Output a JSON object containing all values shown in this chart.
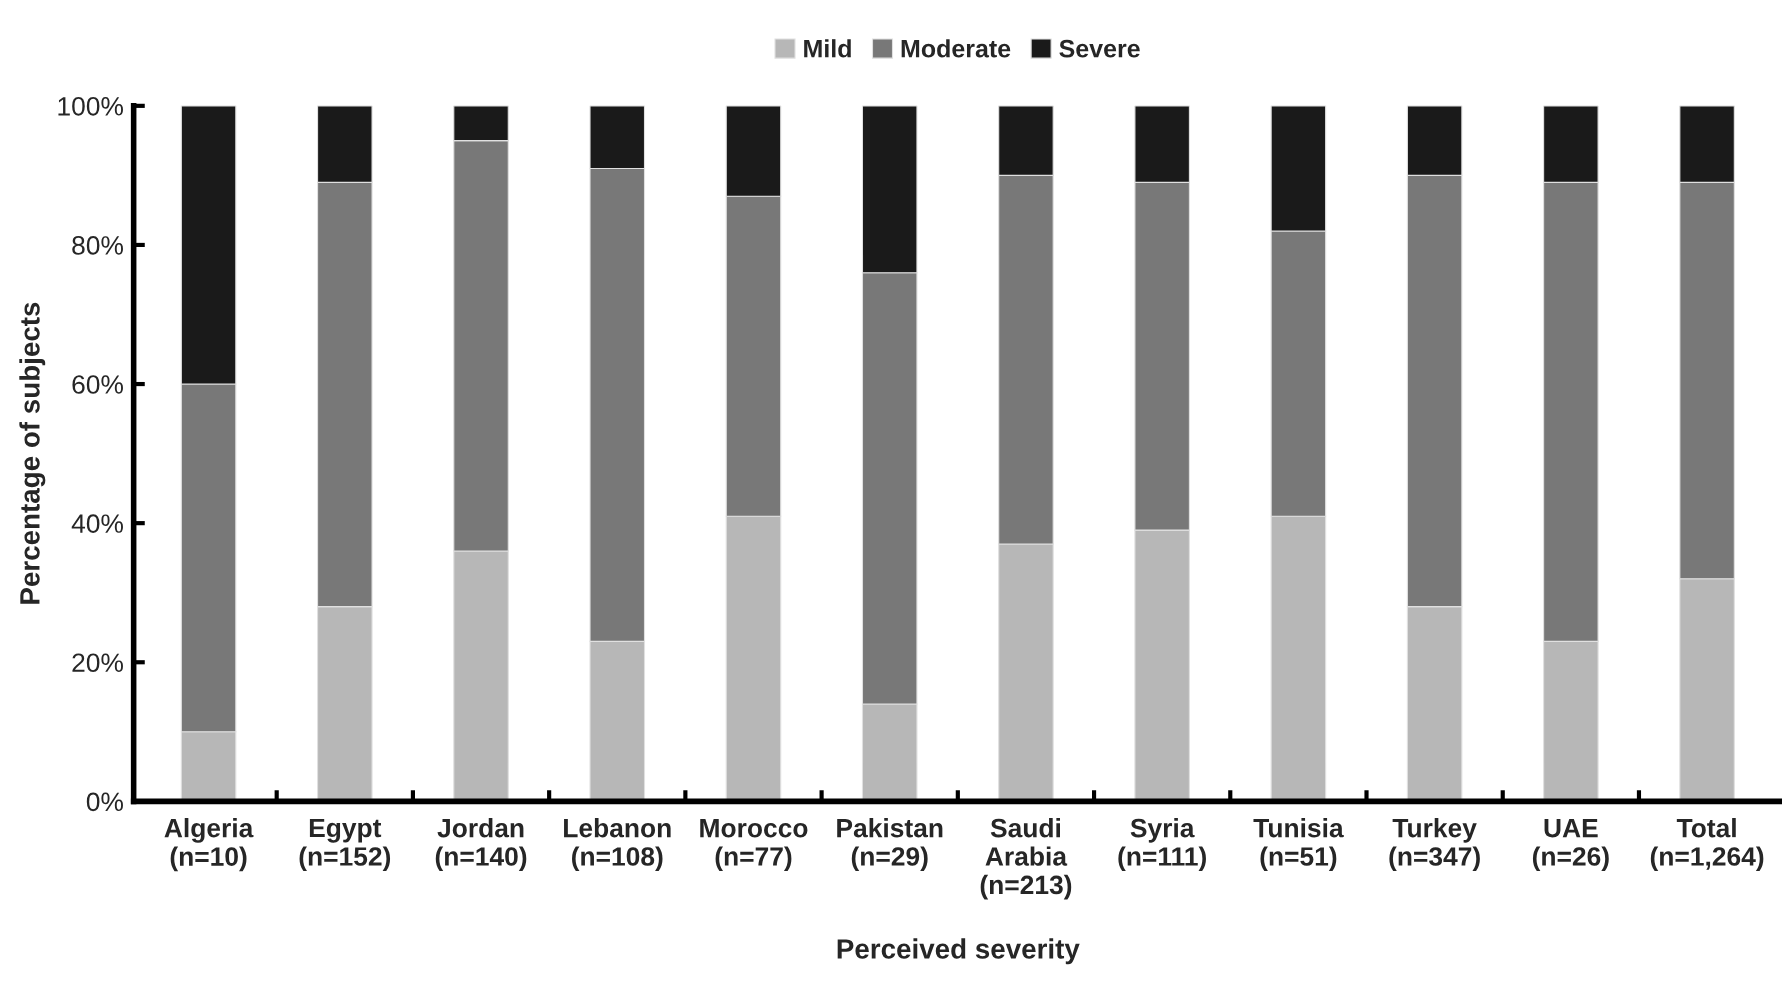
{
  "chart_data": {
    "type": "bar",
    "stacked": true,
    "xlabel": "Perceived severity",
    "ylabel": "Percentage of subjects",
    "categories": [
      "Algeria\n(n=10)",
      "Egypt\n(n=152)",
      "Jordan\n(n=140)",
      "Lebanon\n(n=108)",
      "Morocco\n(n=77)",
      "Pakistan\n(n=29)",
      "Saudi\nArabia\n(n=213)",
      "Syria\n(n=111)",
      "Tunisia\n(n=51)",
      "Turkey\n(n=347)",
      "UAE\n(n=26)",
      "Total\n(n=1,264)"
    ],
    "series": [
      {
        "name": "Mild",
        "color": "#b7b7b7",
        "values": [
          10,
          28,
          36,
          23,
          41,
          14,
          37,
          39,
          41,
          28,
          23,
          32
        ]
      },
      {
        "name": "Moderate",
        "color": "#787878",
        "values": [
          50,
          61,
          59,
          68,
          46,
          62,
          53,
          50,
          41,
          62,
          66,
          57
        ]
      },
      {
        "name": "Severe",
        "color": "#1a1a1a",
        "values": [
          40,
          11,
          5,
          9,
          13,
          24,
          10,
          11,
          18,
          10,
          11,
          11
        ]
      }
    ],
    "ylim": [
      0,
      100
    ],
    "yticks": [
      {
        "value": 0,
        "label": "0%"
      },
      {
        "value": 20,
        "label": "20%"
      },
      {
        "value": 40,
        "label": "40%"
      },
      {
        "value": 60,
        "label": "60%"
      },
      {
        "value": 80,
        "label": "80%"
      },
      {
        "value": 100,
        "label": "100%"
      }
    ],
    "legend": "top",
    "grid": false
  }
}
